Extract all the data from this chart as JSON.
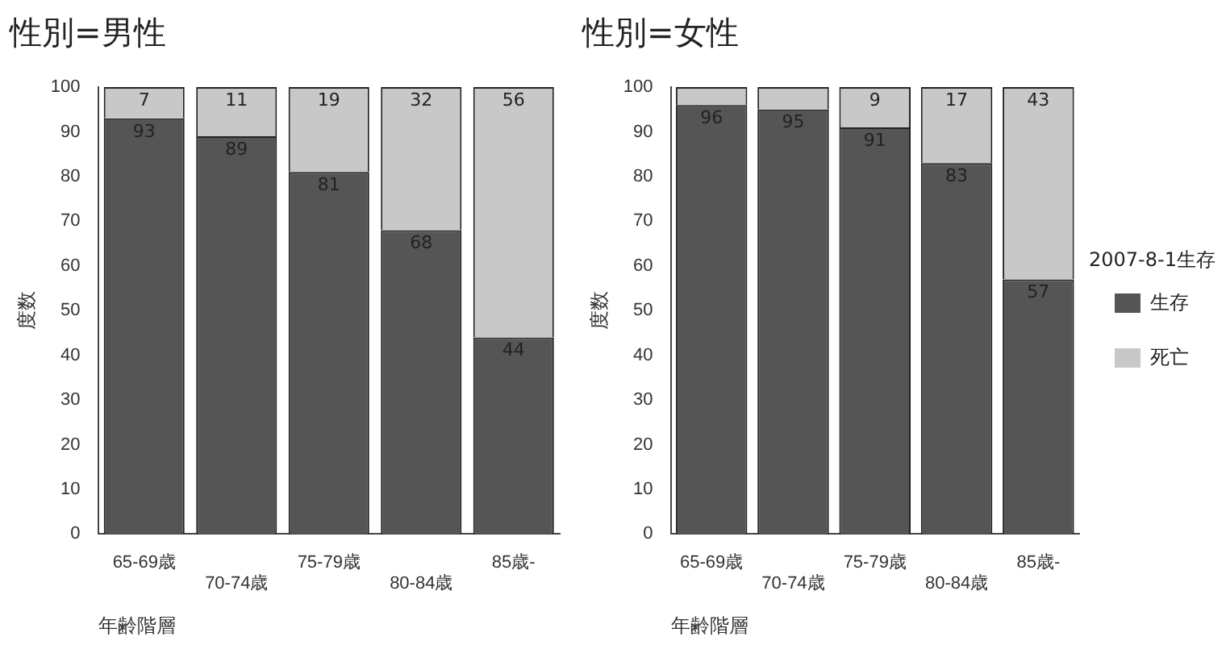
{
  "chart_data": [
    {
      "type": "bar",
      "title": "性別=男性",
      "xlabel": "年齢階層",
      "ylabel": "度数",
      "categories": [
        "65-69歳",
        "70-74歳",
        "75-79歳",
        "80-84歳",
        "85歳-"
      ],
      "stacked": true,
      "ylim": [
        0,
        100
      ],
      "yticks": [
        0,
        10,
        20,
        30,
        40,
        50,
        60,
        70,
        80,
        90,
        100
      ],
      "grid": false,
      "legend": false,
      "series": [
        {
          "color": "#555555",
          "values": [
            93,
            89,
            81,
            68,
            44
          ],
          "value_labels": [
            "93",
            "89",
            "81",
            "68",
            "44"
          ]
        },
        {
          "color": "#c8c8c8",
          "values": [
            7,
            11,
            19,
            32,
            56
          ],
          "value_labels": [
            "7",
            "11",
            "19",
            "32",
            "56"
          ]
        }
      ]
    },
    {
      "type": "bar",
      "title": "性別=女性",
      "xlabel": "年齢階層",
      "ylabel": "度数",
      "legend_title": "2007-8-1生存",
      "categories": [
        "65-69歳",
        "70-74歳",
        "75-79歳",
        "80-84歳",
        "85歳-"
      ],
      "stacked": true,
      "ylim": [
        0,
        100
      ],
      "yticks": [
        0,
        10,
        20,
        30,
        40,
        50,
        60,
        70,
        80,
        90,
        100
      ],
      "grid": false,
      "legend": "right",
      "series": [
        {
          "name": "生存",
          "color": "#555555",
          "values": [
            96,
            95,
            91,
            83,
            57
          ],
          "value_labels": [
            "96",
            "95",
            "91",
            "83",
            "57"
          ]
        },
        {
          "name": "死亡",
          "color": "#c8c8c8",
          "values": [
            4,
            5,
            9,
            17,
            43
          ],
          "value_labels": [
            null,
            null,
            "9",
            "17",
            "43"
          ]
        }
      ]
    }
  ]
}
